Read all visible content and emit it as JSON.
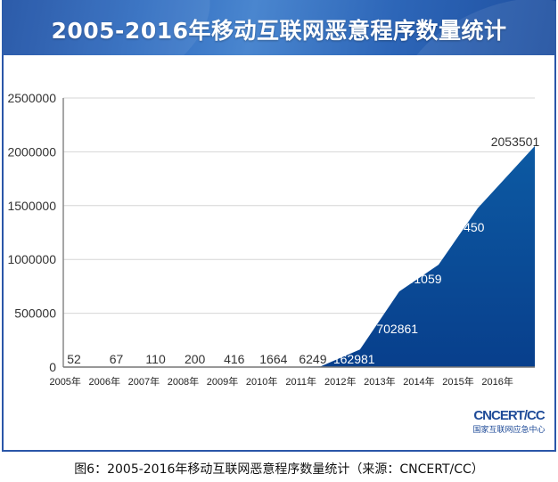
{
  "header": {
    "title": "2005-2016年移动互联网恶意程序数量统计"
  },
  "chart_data": {
    "type": "area",
    "title": "2005-2016年移动互联网恶意程序数量统计",
    "xlabel": "",
    "ylabel": "",
    "categories": [
      "2005年",
      "2006年",
      "2007年",
      "2008年",
      "2009年",
      "2010年",
      "2011年",
      "2012年",
      "2013年",
      "2014年",
      "2015年",
      "2016年"
    ],
    "values": [
      52,
      67,
      110,
      200,
      416,
      1664,
      6249,
      162981,
      702861,
      951059,
      1477450,
      2053501
    ],
    "data_labels": [
      "52",
      "67",
      "110",
      "200",
      "416",
      "1664",
      "6249",
      "162981",
      "702861",
      "951059",
      "1477450",
      "2053501"
    ],
    "ylim": [
      0,
      2500000
    ],
    "yticks": [
      0,
      500000,
      1000000,
      1500000,
      2000000,
      2500000
    ],
    "ytick_labels": [
      "0",
      "500000",
      "1000000",
      "1500000",
      "2000000",
      "2500000"
    ],
    "grid": true,
    "legend": "none",
    "fill_color": "#0b4f98"
  },
  "logo": {
    "main": "CNCERT/CC",
    "sub": "国家互联网应急中心"
  },
  "caption": "图6：2005-2016年移动互联网恶意程序数量统计（来源：CNCERT/CC）"
}
